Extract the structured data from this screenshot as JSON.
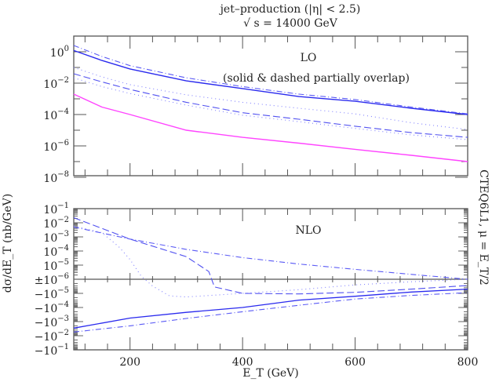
{
  "chart_data": {
    "type": "line",
    "title": "jet–production (|η| < 2.5)",
    "subtitle": "√ s = 14000 GeV",
    "ylabel": "dσ/dE_T (nb/GeV)",
    "right_label": "CTEQ6L1, μ = E_T/2",
    "xlabel": "E_T (GeV)",
    "xlim": [
      100,
      800
    ],
    "x_ticks": [
      "200",
      "400",
      "600",
      "800"
    ],
    "grid": false,
    "legend": "none",
    "panels": [
      {
        "annotation": "LO",
        "annotation2": "(solid & dashed partially overlap)",
        "yscale": "log",
        "ylim": [
          1e-08,
          10
        ],
        "y_ticks": [
          {
            "base": "10",
            "exp": "0"
          },
          {
            "base": "10",
            "exp": "−2"
          },
          {
            "base": "10",
            "exp": "−4"
          },
          {
            "base": "10",
            "exp": "−6"
          },
          {
            "base": "10",
            "exp": "−8"
          }
        ],
        "x": [
          100,
          150,
          200,
          300,
          400,
          500,
          600,
          700,
          800
        ],
        "series": [
          {
            "style": "solid",
            "color": "#2a2aee",
            "values": [
              1.2,
              0.28,
              0.08,
              0.014,
              0.0045,
              0.0014,
              0.0007,
              0.00025,
              0.0001
            ]
          },
          {
            "style": "dash-dot",
            "color": "#5a5af5",
            "values": [
              2.5,
              0.5,
              0.13,
              0.022,
              0.006,
              0.002,
              0.0009,
              0.0003,
              0.00011
            ]
          },
          {
            "style": "dotted",
            "color": "#8080ff",
            "values": [
              0.1,
              0.025,
              0.008,
              0.0018,
              0.0006,
              0.00025,
              0.00011,
              3e-05,
              1.1e-05
            ]
          },
          {
            "style": "dashed",
            "color": "#5050f0",
            "values": [
              0.04,
              0.012,
              0.004,
              0.0006,
              0.00013,
              5e-05,
              1.8e-05,
              7e-06,
              3.5e-06
            ]
          },
          {
            "style": "dotted",
            "color": "#8080ff",
            "values": [
              0.022,
              0.006,
              0.0022,
              0.0004,
              9e-05,
              3.5e-05,
              1.3e-05,
              5e-06,
              2.5e-06
            ]
          },
          {
            "style": "solid",
            "color": "#ff44ff",
            "values": [
              0.002,
              0.0003,
              0.0001,
              1e-05,
              3.5e-06,
              1.5e-06,
              6e-07,
              2.5e-07,
              1e-07
            ]
          }
        ]
      },
      {
        "annotation": "NLO",
        "yscale": "signed-log",
        "ylim": [
          -0.1,
          0.1
        ],
        "y_ticks": [
          {
            "prefix": "",
            "base": "10",
            "exp": "−1",
            "value": 0.1
          },
          {
            "prefix": "",
            "base": "10",
            "exp": "−2",
            "value": 0.01
          },
          {
            "prefix": "",
            "base": "10",
            "exp": "−3",
            "value": 0.001
          },
          {
            "prefix": "",
            "base": "10",
            "exp": "−4",
            "value": 0.0001
          },
          {
            "prefix": "",
            "base": "10",
            "exp": "−5",
            "value": 1e-05
          },
          {
            "prefix": "±",
            "base": "10",
            "exp": "−6",
            "value": 1e-06
          },
          {
            "prefix": "−",
            "base": "10",
            "exp": "−5",
            "value": -1e-05
          },
          {
            "prefix": "−",
            "base": "10",
            "exp": "−4",
            "value": -0.0001
          },
          {
            "prefix": "−",
            "base": "10",
            "exp": "−3",
            "value": -0.001
          },
          {
            "prefix": "−",
            "base": "10",
            "exp": "−2",
            "value": -0.01
          },
          {
            "prefix": "−",
            "base": "10",
            "exp": "−1",
            "value": -0.1
          }
        ],
        "series": [
          {
            "style": "dashed",
            "color": "#5050f0",
            "x": [
              100,
              200,
              300,
              340,
              350,
              400,
              500,
              600,
              700,
              800
            ],
            "values": [
              0.023,
              0.0007,
              4e-05,
              3.5e-06,
              -3.5e-06,
              -1e-05,
              -1.1e-05,
              -8.5e-06,
              -5e-06,
              -2.8e-06
            ]
          },
          {
            "style": "dash-dot",
            "color": "#5a5af5",
            "x": [
              100,
              200,
              300,
              400,
              500,
              600,
              700,
              800
            ],
            "values": [
              0.005,
              0.0007,
              0.00013,
              3.4e-05,
              1.2e-05,
              5e-06,
              2.2e-06,
              1e-06
            ]
          },
          {
            "style": "dotted",
            "color": "#8080ff",
            "x": [
              100,
              150,
              180,
              200,
              220,
              240,
              270,
              300,
              400,
              500,
              600,
              700,
              800
            ],
            "values": [
              0.006,
              0.002,
              0.0002,
              2.5e-05,
              1.6e-06,
              -3e-06,
              -1.5e-05,
              -1.8e-05,
              -1e-05,
              -5.5e-06,
              -2.5e-06,
              -1.5e-06,
              -1e-06
            ]
          },
          {
            "style": "solid",
            "color": "#2a2aee",
            "x": [
              100,
              200,
              300,
              400,
              500,
              600,
              700,
              800
            ],
            "values": [
              -0.0029,
              -0.00056,
              -0.00022,
              -0.0001,
              -3e-05,
              -1.6e-05,
              -8e-06,
              -5e-06
            ]
          },
          {
            "style": "dash-dot",
            "color": "#5a5af5",
            "x": [
              100,
              200,
              300,
              400,
              500,
              600,
              700,
              800
            ],
            "values": [
              -0.0055,
              -0.002,
              -0.0006,
              -0.0002,
              -7e-05,
              -2.5e-05,
              -1.4e-05,
              -8.9e-06
            ]
          }
        ]
      }
    ]
  }
}
